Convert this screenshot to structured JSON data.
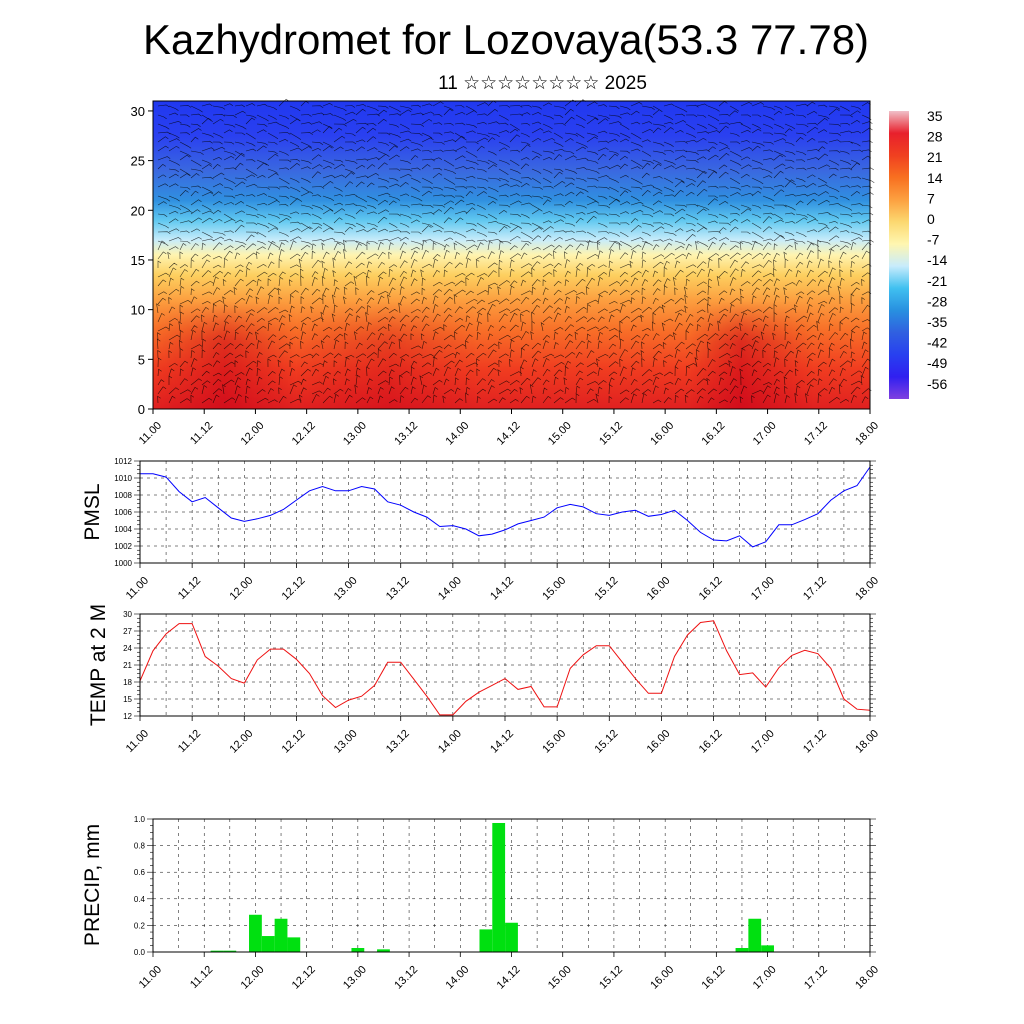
{
  "title": "Kazhydromet for Lozovaya(53.3 77.78)",
  "subtitle": "11 ☆☆☆☆☆☆☆☆ 2025",
  "time_ticks": [
    "11.00",
    "11.12",
    "12.00",
    "12.12",
    "13.00",
    "13.12",
    "14.00",
    "14.12",
    "15.00",
    "15.12",
    "16.00",
    "16.12",
    "17.00",
    "17.12",
    "18.00"
  ],
  "chart_data": [
    {
      "type": "heatmap",
      "name": "vertical temperature cross-section",
      "y_ticks": [
        "0",
        "5",
        "10",
        "15",
        "20",
        "25",
        "30"
      ],
      "ylim": [
        0,
        31
      ],
      "colorbar_labels": [
        "35",
        "28",
        "21",
        "14",
        "7",
        "0",
        "-7",
        "-14",
        "-21",
        "-28",
        "-35",
        "-42",
        "-49",
        "-56"
      ],
      "colorbar_colors": [
        "#f0c0c8",
        "#e8202c",
        "#f04020",
        "#f87020",
        "#fca040",
        "#fcd870",
        "#fff6b0",
        "#c8ecfc",
        "#40c0f0",
        "#2890e0",
        "#3060e0",
        "#2840f0",
        "#3020f0",
        "#8040e0"
      ],
      "layers": [
        {
          "level": 0,
          "color": "#e02020"
        },
        {
          "level": 4,
          "color": "#f03c20"
        },
        {
          "level": 8,
          "color": "#f87028"
        },
        {
          "level": 11,
          "color": "#fca040"
        },
        {
          "level": 13.5,
          "color": "#fdd060"
        },
        {
          "level": 15.5,
          "color": "#fff4b0"
        },
        {
          "level": 17,
          "color": "#c8ecfa"
        },
        {
          "level": 19,
          "color": "#60c8f0"
        },
        {
          "level": 21,
          "color": "#3090e0"
        },
        {
          "level": 24,
          "color": "#3a68e0"
        },
        {
          "level": 27.5,
          "color": "#2a40f0"
        },
        {
          "level": 31,
          "color": "#2038f0"
        }
      ],
      "grid": false
    },
    {
      "type": "line",
      "ylabel": "PMSL",
      "ylim": [
        1000,
        1012
      ],
      "y_ticks": [
        "1000",
        "1002",
        "1004",
        "1006",
        "1008",
        "1010",
        "1012"
      ],
      "color": "#0000ff",
      "x": [
        0,
        3,
        6,
        9,
        12,
        15,
        18,
        21,
        24,
        27,
        30,
        33,
        36,
        39,
        42,
        45,
        48,
        51,
        54,
        57,
        60,
        63,
        66,
        69,
        72,
        75,
        78,
        81,
        84,
        87,
        90,
        93,
        96,
        99,
        102,
        105,
        108,
        111,
        114,
        117,
        120,
        123,
        126,
        129,
        132,
        135,
        138,
        141,
        144,
        147,
        150,
        153,
        156,
        159,
        162,
        165,
        168
      ],
      "values": [
        1010.5,
        1010.5,
        1010.1,
        1008.4,
        1007.2,
        1007.7,
        1006.5,
        1005.3,
        1004.9,
        1005.2,
        1005.6,
        1006.3,
        1007.4,
        1008.5,
        1009.0,
        1008.5,
        1008.5,
        1009.0,
        1008.7,
        1007.2,
        1006.8,
        1006.0,
        1005.4,
        1004.3,
        1004.4,
        1004.0,
        1003.2,
        1003.4,
        1003.9,
        1004.6,
        1005.0,
        1005.4,
        1006.5,
        1006.9,
        1006.6,
        1005.8,
        1005.6,
        1006.0,
        1006.2,
        1005.5,
        1005.7,
        1006.2,
        1005.0,
        1003.6,
        1002.7,
        1002.6,
        1003.2,
        1001.9,
        1002.5,
        1004.5,
        1004.5,
        1005.1,
        1005.8,
        1007.4,
        1008.5,
        1009.1,
        1011.3
      ],
      "grid": true
    },
    {
      "type": "line",
      "ylabel": "TEMP at 2 M",
      "ylim": [
        12,
        30
      ],
      "y_ticks": [
        "12",
        "15",
        "18",
        "21",
        "24",
        "27",
        "30"
      ],
      "color": "#ee1010",
      "x": [
        0,
        3,
        6,
        9,
        12,
        15,
        18,
        21,
        24,
        27,
        30,
        33,
        36,
        39,
        42,
        45,
        48,
        51,
        54,
        57,
        60,
        63,
        66,
        69,
        72,
        75,
        78,
        81,
        84,
        87,
        90,
        93,
        96,
        99,
        102,
        105,
        108,
        111,
        114,
        117,
        120,
        123,
        126,
        129,
        132,
        135,
        138,
        141,
        144,
        147,
        150,
        153,
        156,
        159,
        162,
        165,
        168
      ],
      "values": [
        18.2,
        23.5,
        26.5,
        28.3,
        28.3,
        22.5,
        20.8,
        18.6,
        17.8,
        21.9,
        23.8,
        23.8,
        22.0,
        19.5,
        15.6,
        13.5,
        14.8,
        15.5,
        17.4,
        21.5,
        21.5,
        18.5,
        15.5,
        12.2,
        12.2,
        14.6,
        16.2,
        17.4,
        18.6,
        16.7,
        17.2,
        13.6,
        13.6,
        20.4,
        22.8,
        24.4,
        24.4,
        21.5,
        18.6,
        16.0,
        16.0,
        22.5,
        26.3,
        28.5,
        28.8,
        23.5,
        19.3,
        19.6,
        17.1,
        20.5,
        22.7,
        23.6,
        23.0,
        20.4,
        15.0,
        13.2,
        13.0
      ],
      "grid": true
    },
    {
      "type": "bar",
      "ylabel": "PRECIP, mm",
      "ylim": [
        0,
        1.0
      ],
      "y_ticks": [
        "0.0",
        "0.2",
        "0.4",
        "0.6",
        "0.8",
        "1.0"
      ],
      "color": "#00e010",
      "bin_hours": 3,
      "x": [
        15,
        18,
        24,
        27,
        30,
        33,
        48,
        54,
        78,
        81,
        84,
        138,
        141,
        144
      ],
      "values": [
        0.01,
        0.01,
        0.28,
        0.12,
        0.25,
        0.11,
        0.03,
        0.02,
        0.17,
        0.97,
        0.22,
        0.03,
        0.25,
        0.05
      ],
      "grid": true
    }
  ]
}
